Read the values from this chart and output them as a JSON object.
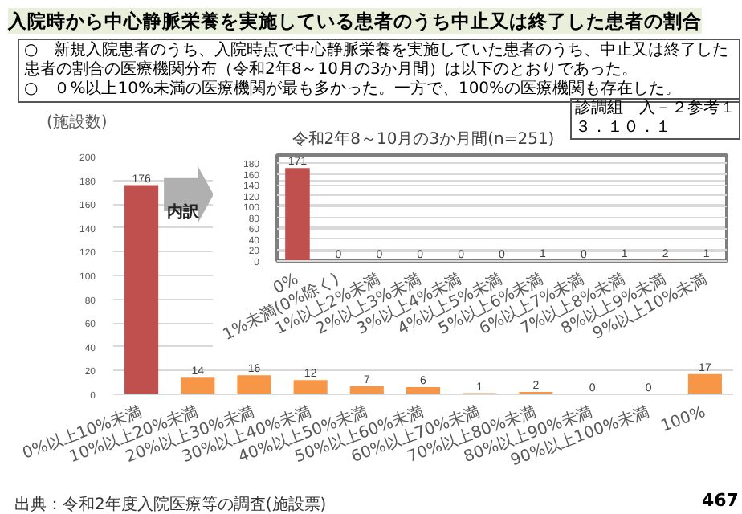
{
  "chart_data": [
    {
      "type": "bar",
      "title": "令和2年8～10月の3か月間(n=251)",
      "ylabel": "(施設数)",
      "categories": [
        "0%以上10%未満",
        "10%以上20%未満",
        "20%以上30%未満",
        "30%以上40%未満",
        "40%以上50%未満",
        "50%以上60%未満",
        "60%以上70%未満",
        "70%以上80%未満",
        "80%以上90%未満",
        "90%以上100%未満",
        "100%"
      ],
      "values": [
        176,
        14,
        16,
        12,
        7,
        6,
        1,
        2,
        0,
        0,
        17
      ],
      "colors": [
        "#c0504d",
        "#f79646",
        "#f79646",
        "#f79646",
        "#f79646",
        "#f79646",
        "#f79646",
        "#f79646",
        "#f79646",
        "#f79646",
        "#f79646"
      ],
      "ylim": [
        0,
        200
      ],
      "yticks": [
        0,
        20,
        40,
        60,
        80,
        100,
        120,
        140,
        160,
        180,
        200
      ],
      "grid": "y",
      "data_labels": true,
      "annotations": [
        "入院時から中心静脈栄養を実施している患者のうち中止又は終了した患者の割合",
        "○　新規入院患者のうち、入院時点で中心静脈栄養を実施していた患者のうち、中止又は終了した患者の割合の医療機関分布（令和2年8～10月の3か月間）は以下のとおりであった。",
        "○　０%以上10%未満の医療機関が最も多かった。一方で、100%の医療機関も存在した。",
        "診調組　入－２参考１",
        "３．１０．１",
        "内訳",
        "出典：令和2年度入院医療等の調査(施設票)",
        "467"
      ]
    },
    {
      "type": "bar",
      "categories": [
        "0%",
        "1%未満(0%除く)",
        "1%以上2%未満",
        "2%以上3%未満",
        "3%以上4%未満",
        "4%以上5%未満",
        "5%以上6%未満",
        "6%以上7%未満",
        "7%以上8%未満",
        "8%以上9%未満",
        "9%以上10%未満"
      ],
      "values": [
        171,
        0,
        0,
        0,
        0,
        0,
        1,
        0,
        1,
        2,
        1
      ],
      "color": "#c0504d",
      "ylim": [
        0,
        195
      ],
      "yticks": [
        0,
        20,
        40,
        60,
        80,
        100,
        120,
        140,
        160,
        180
      ],
      "grid": "y",
      "data_labels": true
    }
  ]
}
